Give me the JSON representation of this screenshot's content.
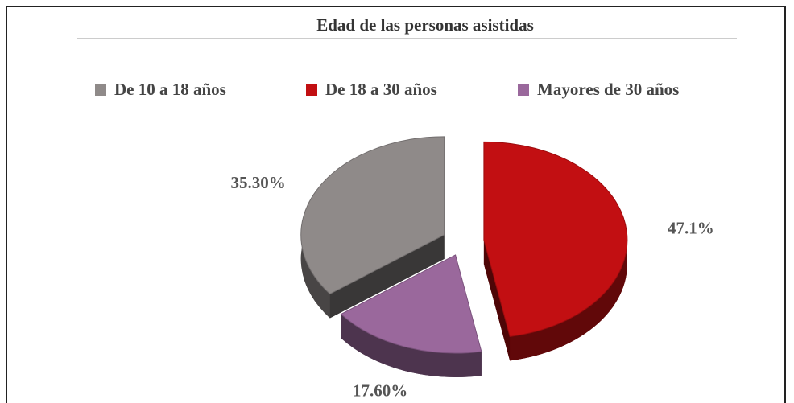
{
  "chart_data": {
    "type": "pie",
    "title": "Edad de las personas asistidas",
    "categories": [
      "De 10 a 18 años",
      "De 18 a 30 años",
      "Mayores de 30 años"
    ],
    "values": [
      35.3,
      47.1,
      17.6
    ],
    "value_labels": [
      "35.30%",
      "47.1%",
      "17.60%"
    ],
    "colors": [
      "#8f8a89",
      "#c20f12",
      "#9a689c"
    ],
    "legend": "top"
  }
}
